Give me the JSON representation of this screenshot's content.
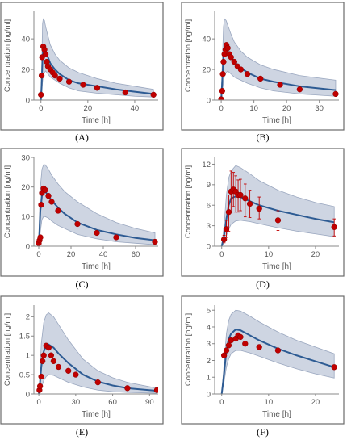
{
  "colors": {
    "band_fill": "#c5cedd",
    "band_stroke": "#9aa7bf",
    "line": "#2d5b93",
    "point": "#c00000",
    "frame": "#6b6b6b",
    "axis_text": "#555555"
  },
  "chart_data": [
    {
      "label": "(A)",
      "type": "line",
      "xlabel": "Time [h]",
      "ylabel": "Concentration [ng/ml]",
      "xlim": [
        -3,
        50
      ],
      "ylim": [
        0,
        58
      ],
      "xticks": [
        0,
        20,
        40
      ],
      "yticks": [
        0,
        20,
        40
      ],
      "median_x": [
        0,
        0.3,
        0.7,
        1,
        1.5,
        2,
        3,
        4,
        6,
        8,
        12,
        16,
        24,
        32,
        40,
        48
      ],
      "median_y": [
        0,
        10,
        28,
        33,
        34,
        32,
        28,
        24,
        20,
        17,
        13,
        11,
        9,
        7,
        5.5,
        4
      ],
      "upper_y": [
        0,
        20,
        50,
        53,
        52,
        48,
        42,
        36,
        30,
        26,
        21,
        18,
        14,
        11,
        9,
        7
      ],
      "lower_y": [
        0,
        3,
        12,
        16,
        18,
        19,
        17,
        15,
        13,
        11,
        8,
        6,
        4.5,
        3.5,
        2.5,
        2
      ],
      "points": [
        [
          0,
          3.5
        ],
        [
          0.3,
          16
        ],
        [
          0.5,
          28
        ],
        [
          1,
          35
        ],
        [
          1.5,
          33
        ],
        [
          2,
          30
        ],
        [
          2.5,
          25
        ],
        [
          3,
          22
        ],
        [
          4,
          20
        ],
        [
          5,
          18
        ],
        [
          6,
          16
        ],
        [
          8,
          14
        ],
        [
          12,
          12
        ],
        [
          18,
          10
        ],
        [
          24,
          8
        ],
        [
          36,
          5
        ],
        [
          48,
          3.5
        ]
      ]
    },
    {
      "label": "(B)",
      "type": "line",
      "xlabel": "Time [h]",
      "ylabel": "Concentration [ng/ml]",
      "xlim": [
        -2,
        36
      ],
      "ylim": [
        0,
        58
      ],
      "xticks": [
        0,
        10,
        20,
        30
      ],
      "yticks": [
        0,
        20,
        40
      ],
      "median_x": [
        0,
        0.3,
        0.7,
        1,
        1.5,
        2,
        3,
        4,
        6,
        8,
        12,
        16,
        24,
        35
      ],
      "median_y": [
        0,
        12,
        28,
        32,
        33,
        32,
        28,
        25,
        21,
        18,
        14,
        12,
        9,
        6.5
      ],
      "upper_y": [
        0,
        22,
        48,
        53,
        52,
        49,
        43,
        38,
        32,
        28,
        23,
        20,
        16,
        13
      ],
      "lower_y": [
        0,
        4,
        12,
        16,
        18,
        19,
        17,
        15,
        13,
        11,
        8,
        6,
        4,
        2.5
      ],
      "points": [
        [
          0,
          0.5
        ],
        [
          0.3,
          6
        ],
        [
          0.5,
          17
        ],
        [
          0.7,
          25
        ],
        [
          1,
          30
        ],
        [
          1.3,
          33
        ],
        [
          1.6,
          36
        ],
        [
          2,
          34
        ],
        [
          2.5,
          30
        ],
        [
          3,
          28
        ],
        [
          4,
          25
        ],
        [
          5,
          22
        ],
        [
          6,
          20
        ],
        [
          8,
          17
        ],
        [
          12,
          14
        ],
        [
          18,
          10
        ],
        [
          24,
          7
        ],
        [
          35,
          4
        ]
      ]
    },
    {
      "label": "(C)",
      "type": "line",
      "xlabel": "Time [h]",
      "ylabel": "Concentration [ng/ml]",
      "xlim": [
        -3,
        74
      ],
      "ylim": [
        0,
        30
      ],
      "xticks": [
        0,
        20,
        40,
        60
      ],
      "yticks": [
        0,
        10,
        20,
        30
      ],
      "median_x": [
        0,
        0.5,
        1,
        2,
        3,
        4,
        6,
        8,
        12,
        16,
        24,
        36,
        48,
        60,
        72
      ],
      "median_y": [
        0,
        6,
        12,
        17,
        18.5,
        18.5,
        17,
        15.5,
        13,
        11,
        8,
        5.5,
        4,
        2.8,
        2
      ],
      "upper_y": [
        0,
        12,
        20,
        26,
        27.5,
        27.5,
        26,
        24,
        21,
        18.5,
        15,
        11,
        8,
        6,
        4.5
      ],
      "lower_y": [
        0,
        2,
        5,
        9,
        10,
        10,
        9.5,
        8.5,
        7,
        6,
        4,
        2.5,
        1.5,
        1,
        0.5
      ],
      "points": [
        [
          0,
          1
        ],
        [
          0.5,
          2
        ],
        [
          1,
          3
        ],
        [
          1.5,
          14
        ],
        [
          2,
          18
        ],
        [
          3,
          19.5
        ],
        [
          4,
          19
        ],
        [
          6,
          17
        ],
        [
          8,
          15
        ],
        [
          12,
          12
        ],
        [
          24,
          7.5
        ],
        [
          36,
          4.5
        ],
        [
          48,
          3
        ],
        [
          72,
          1.5
        ]
      ]
    },
    {
      "label": "(D)",
      "type": "line",
      "xlabel": "Time [h]",
      "ylabel": "Concentration [ng/ml]",
      "xlim": [
        -1.5,
        25
      ],
      "ylim": [
        0,
        13
      ],
      "xticks": [
        0,
        10,
        20
      ],
      "yticks": [
        0,
        3,
        6,
        9,
        12
      ],
      "median_x": [
        0,
        0.5,
        1,
        1.5,
        2,
        3,
        4,
        6,
        8,
        12,
        16,
        20,
        24
      ],
      "median_y": [
        0,
        1.5,
        4,
        6,
        7,
        7.3,
        7.2,
        6.6,
        6,
        5.2,
        4.6,
        4,
        3.5
      ],
      "upper_y": [
        0,
        3,
        7.5,
        10,
        11,
        11.8,
        11.5,
        10.6,
        9.6,
        8.2,
        7.2,
        6.4,
        5.8
      ],
      "lower_y": [
        0,
        0.5,
        1.5,
        2.5,
        3.2,
        3.7,
        3.8,
        3.6,
        3.3,
        2.7,
        2.2,
        1.8,
        1.4
      ],
      "points": [
        [
          0.5,
          1
        ],
        [
          1,
          2.5
        ],
        [
          1.5,
          5
        ],
        [
          2,
          8
        ],
        [
          2.5,
          8.3
        ],
        [
          3,
          8
        ],
        [
          3.5,
          7.5
        ],
        [
          4,
          7.5
        ],
        [
          5,
          7
        ],
        [
          6,
          6.2
        ],
        [
          8,
          5.5
        ],
        [
          12,
          3.8
        ],
        [
          24,
          2.8
        ]
      ],
      "error_low": [
        0.5,
        1.3,
        2.2,
        5,
        5.8,
        5,
        5,
        5.2,
        4.3,
        4.2,
        4,
        2.3,
        1.5
      ],
      "error_high": [
        1.6,
        3.8,
        7.5,
        11,
        10.8,
        10.3,
        9.7,
        9.8,
        9.1,
        8.2,
        7.2,
        5.2,
        4
      ]
    },
    {
      "label": "(E)",
      "type": "line",
      "xlabel": "Time [h]",
      "ylabel": "Concentration [ng/ml]",
      "xlim": [
        -4,
        97
      ],
      "ylim": [
        0,
        2.3
      ],
      "xticks": [
        0,
        30,
        60,
        90
      ],
      "yticks": [
        0,
        0.5,
        1,
        1.5,
        2
      ],
      "y_tick_labels": [
        "0",
        "0.5",
        "1",
        "1.5",
        "2"
      ],
      "median_x": [
        0,
        1,
        2,
        4,
        6,
        8,
        12,
        16,
        24,
        36,
        48,
        60,
        72,
        96
      ],
      "median_y": [
        0,
        0.3,
        0.7,
        1.1,
        1.25,
        1.28,
        1.2,
        1.05,
        0.8,
        0.5,
        0.32,
        0.22,
        0.15,
        0.08
      ],
      "upper_y": [
        0,
        0.6,
        1.3,
        1.85,
        2.05,
        2.1,
        2.0,
        1.8,
        1.4,
        0.9,
        0.6,
        0.42,
        0.3,
        0.15
      ],
      "lower_y": [
        0,
        0.05,
        0.15,
        0.35,
        0.45,
        0.5,
        0.48,
        0.42,
        0.3,
        0.18,
        0.1,
        0.06,
        0.04,
        0.02
      ],
      "points": [
        [
          0.5,
          0.1
        ],
        [
          1,
          0.2
        ],
        [
          2,
          0.45
        ],
        [
          3,
          0.85
        ],
        [
          4,
          1.0
        ],
        [
          6,
          1.25
        ],
        [
          8,
          1.2
        ],
        [
          10,
          1.0
        ],
        [
          12,
          0.85
        ],
        [
          16,
          0.7
        ],
        [
          24,
          0.6
        ],
        [
          30,
          0.5
        ],
        [
          48,
          0.3
        ],
        [
          72,
          0.15
        ],
        [
          96,
          0.1
        ]
      ]
    },
    {
      "label": "(F)",
      "type": "line",
      "xlabel": "Time [h]",
      "ylabel": "Concentration [ng/ml]",
      "xlim": [
        -1.5,
        25
      ],
      "ylim": [
        0,
        5.3
      ],
      "xticks": [
        0,
        10,
        20
      ],
      "yticks": [
        0,
        1,
        2,
        3,
        4,
        5
      ],
      "median_x": [
        0,
        0.5,
        1,
        1.5,
        2,
        3,
        4,
        6,
        8,
        12,
        16,
        20,
        24
      ],
      "median_y": [
        0,
        1.2,
        2.6,
        3.3,
        3.6,
        3.85,
        3.8,
        3.5,
        3.2,
        2.7,
        2.3,
        1.95,
        1.6
      ],
      "upper_y": [
        0,
        1.8,
        3.6,
        4.4,
        4.75,
        5.0,
        4.95,
        4.65,
        4.3,
        3.7,
        3.2,
        2.8,
        2.4
      ],
      "lower_y": [
        0,
        0.7,
        1.6,
        2.1,
        2.4,
        2.6,
        2.6,
        2.45,
        2.25,
        1.85,
        1.5,
        1.2,
        0.95
      ],
      "points": [
        [
          0.5,
          2.3
        ],
        [
          1,
          2.6
        ],
        [
          1.5,
          2.9
        ],
        [
          2,
          3.2
        ],
        [
          3,
          3.3
        ],
        [
          3.5,
          3.5
        ],
        [
          4,
          3.4
        ],
        [
          5,
          3.0
        ],
        [
          8,
          2.8
        ],
        [
          12,
          2.6
        ],
        [
          24,
          1.6
        ]
      ]
    }
  ]
}
